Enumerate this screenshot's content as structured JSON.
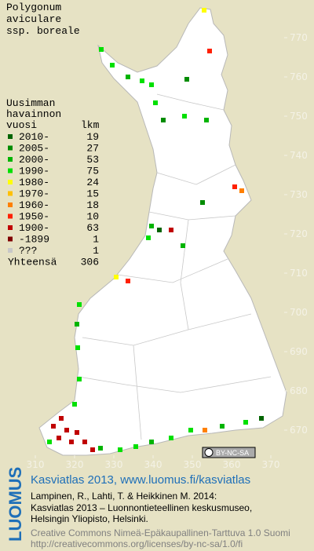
{
  "title_lines": [
    "Polygonum",
    "aviculare",
    "ssp. boreale"
  ],
  "legend": {
    "heading_lines": [
      "Uusimman",
      "havainnon",
      "vuosi"
    ],
    "count_heading": "lkm",
    "rows": [
      {
        "label": "2010-",
        "count": 19,
        "color": "#006400"
      },
      {
        "label": "2005-",
        "count": 27,
        "color": "#008c00"
      },
      {
        "label": "2000-",
        "count": 53,
        "color": "#00b400"
      },
      {
        "label": "1990-",
        "count": 75,
        "color": "#00e000"
      },
      {
        "label": "1980-",
        "count": 24,
        "color": "#ffff00"
      },
      {
        "label": "1970-",
        "count": 15,
        "color": "#ffc000"
      },
      {
        "label": "1960-",
        "count": 18,
        "color": "#ff8000"
      },
      {
        "label": "1950-",
        "count": 10,
        "color": "#ff2000"
      },
      {
        "label": "1900-",
        "count": 63,
        "color": "#c00000"
      },
      {
        "label": "-1899",
        "count": 1,
        "color": "#800000"
      },
      {
        "label": "???",
        "count": 1,
        "color": "#c8c8c8"
      }
    ],
    "total_label": "Yhteensä",
    "total": 306
  },
  "map": {
    "yticks": [
      770,
      760,
      750,
      740,
      730,
      720,
      710,
      700,
      690,
      680,
      670
    ],
    "xticks": [
      310,
      320,
      330,
      340,
      350,
      360,
      370
    ],
    "badge": "BY-NC-SA"
  },
  "footer": {
    "logo": "LUOMUS",
    "link": "Kasviatlas 2013, www.luomus.fi/kasviatlas",
    "citation": [
      "Lampinen, R., Lahti, T. & Heikkinen M. 2014:",
      "Kasviatlas 2013 – Luonnontieteellinen keskusmuseo,",
      "Helsingin Yliopisto, Helsinki."
    ],
    "license": [
      "Creative Commons Nimeä-Epäkaupallinen-Tarttuva 1.0 Suomi",
      "http://creativecommons.org/licenses/by-nc-sa/1.0/fi"
    ]
  }
}
